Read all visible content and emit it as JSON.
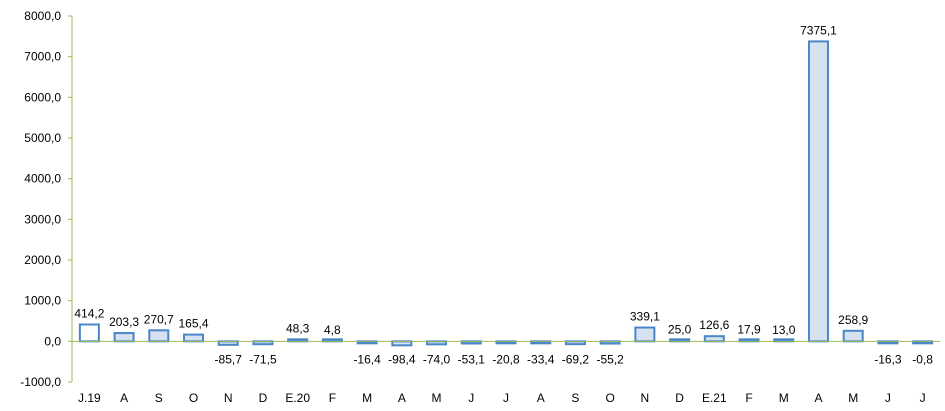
{
  "chart_data": {
    "type": "bar",
    "title": "",
    "xlabel": "",
    "ylabel": "",
    "ylim": [
      -1000,
      8000
    ],
    "y_ticks": [
      "-1000,0",
      "0,0",
      "1000,0",
      "2000,0",
      "3000,0",
      "4000,0",
      "5000,0",
      "6000,0",
      "7000,0",
      "8000,0"
    ],
    "y_tick_values": [
      -1000,
      0,
      1000,
      2000,
      3000,
      4000,
      5000,
      6000,
      7000,
      8000
    ],
    "grid": false,
    "legend": "none",
    "categories": [
      "J.19",
      "A",
      "S",
      "O",
      "N",
      "D",
      "E.20",
      "F",
      "M",
      "A",
      "M",
      "J",
      "J",
      "A",
      "S",
      "O",
      "N",
      "D",
      "E.21",
      "F",
      "M",
      "A",
      "M",
      "J",
      "J"
    ],
    "values": [
      414.2,
      203.3,
      270.7,
      165.4,
      -85.7,
      -71.5,
      48.3,
      4.8,
      -16.4,
      -98.4,
      -74.0,
      -53.1,
      -20.8,
      -33.4,
      -69.2,
      -55.2,
      339.1,
      25.0,
      126.6,
      17.9,
      13.0,
      7375.1,
      258.9,
      -16.3,
      -0.8
    ],
    "value_labels": [
      "414,2",
      "203,3",
      "270,7",
      "165,4",
      "-85,7",
      "-71,5",
      "48,3",
      "4,8",
      "-16,4",
      "-98,4",
      "-74,0",
      "-53,1",
      "-20,8",
      "-33,4",
      "-69,2",
      "-55,2",
      "339,1",
      "25,0",
      "126,6",
      "17,9",
      "13,0",
      "7375,1",
      "258,9",
      "-16,3",
      "-0,8"
    ],
    "colors": {
      "bar_fill": "#d6e2f0",
      "first_bar_fill": "#ffffff",
      "bar_stroke": "#4a86c8",
      "axis": "#9bbb59",
      "text": "#000000"
    }
  }
}
